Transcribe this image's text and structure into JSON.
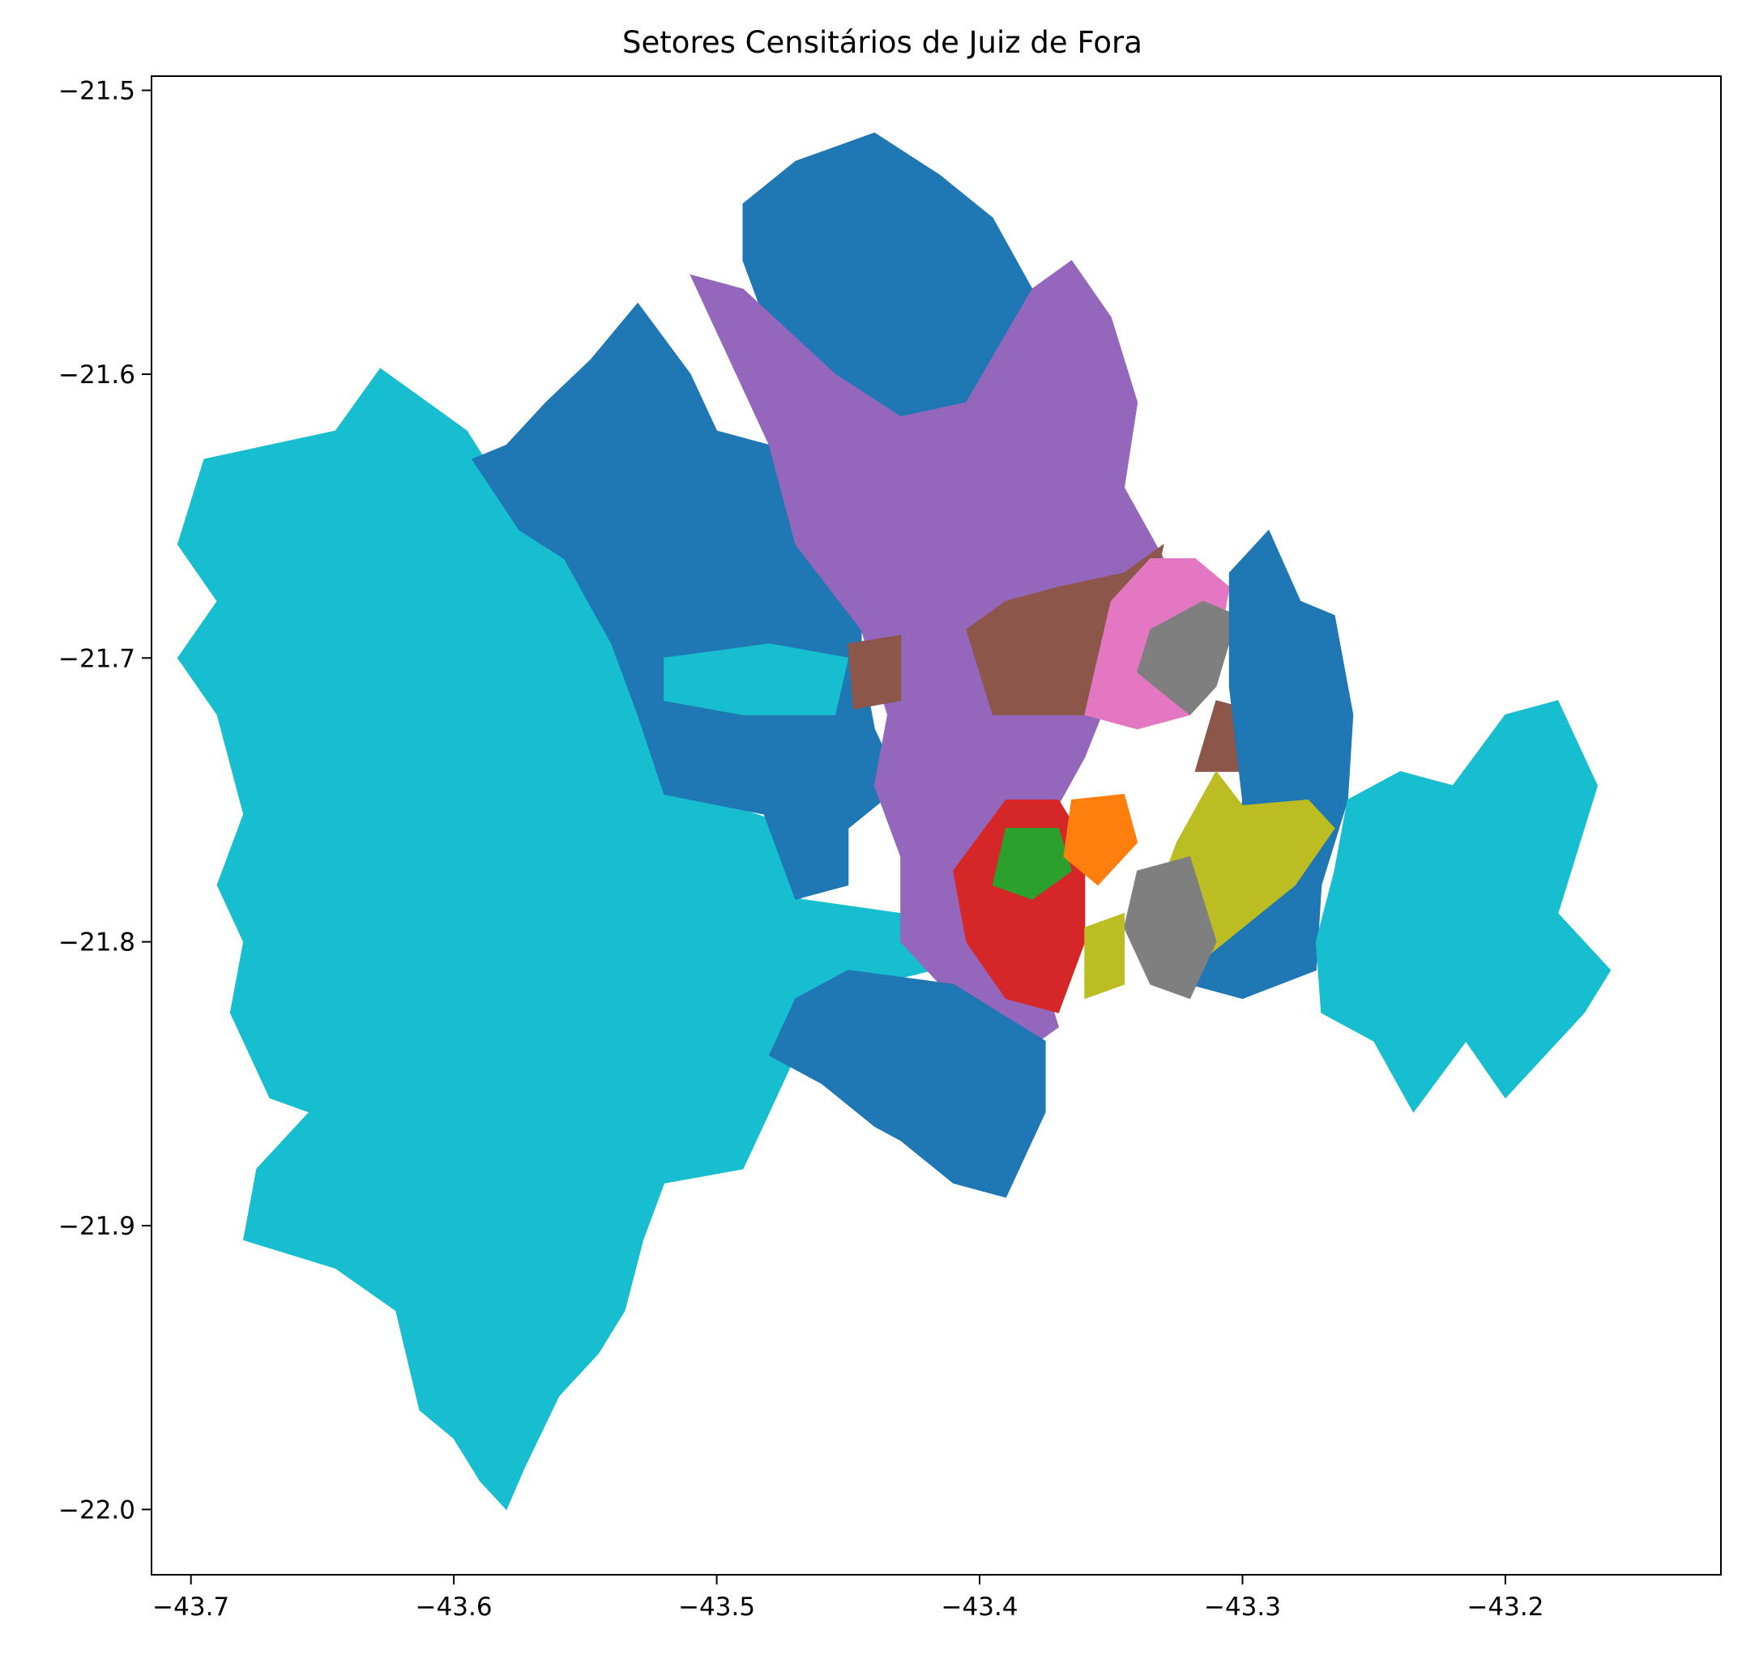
{
  "chart_data": {
    "type": "map",
    "title": "Setores Censitários de Juiz de Fora",
    "xlabel": "",
    "ylabel": "",
    "xlim": [
      -43.715,
      -43.118
    ],
    "ylim": [
      -22.023,
      -21.495
    ],
    "x_ticks": [
      -43.7,
      -43.6,
      -43.5,
      -43.4,
      -43.3,
      -43.2
    ],
    "x_tick_labels": [
      "−43.7",
      "−43.6",
      "−43.5",
      "−43.4",
      "−43.3",
      "−43.2"
    ],
    "y_ticks": [
      -21.5,
      -21.6,
      -21.7,
      -21.8,
      -21.9,
      -22.0
    ],
    "y_tick_labels": [
      "−21.5",
      "−21.6",
      "−21.7",
      "−21.8",
      "−21.9",
      "−22.0"
    ],
    "grid": false,
    "legend": "none",
    "colormap": "tab10",
    "region_colors": {
      "blue": "#1f77b4",
      "orange": "#ff7f0e",
      "green": "#2ca02c",
      "red": "#d62728",
      "purple": "#9467bd",
      "brown": "#8c564b",
      "pink": "#e377c2",
      "gray": "#7f7f7f",
      "olive": "#bcbd22",
      "cyan": "#17becf"
    },
    "regions": [
      {
        "color": "cyan",
        "outline": [
          [
            -43.645,
            -21.62
          ],
          [
            -43.628,
            -21.598
          ],
          [
            -43.61,
            -21.61
          ],
          [
            -43.595,
            -21.62
          ],
          [
            -43.58,
            -21.642
          ],
          [
            -43.56,
            -21.66
          ],
          [
            -43.53,
            -21.685
          ],
          [
            -43.52,
            -21.705
          ],
          [
            -43.508,
            -21.725
          ],
          [
            -43.51,
            -21.748
          ],
          [
            -43.485,
            -21.755
          ],
          [
            -43.47,
            -21.76
          ],
          [
            -43.468,
            -21.785
          ],
          [
            -43.43,
            -21.79
          ],
          [
            -43.418,
            -21.81
          ],
          [
            -43.44,
            -21.815
          ],
          [
            -43.47,
            -21.84
          ],
          [
            -43.48,
            -21.86
          ],
          [
            -43.49,
            -21.88
          ],
          [
            -43.52,
            -21.885
          ],
          [
            -43.528,
            -21.905
          ],
          [
            -43.535,
            -21.93
          ],
          [
            -43.545,
            -21.945
          ],
          [
            -43.56,
            -21.96
          ],
          [
            -43.573,
            -21.985
          ],
          [
            -43.58,
            -22.0
          ],
          [
            -43.59,
            -21.99
          ],
          [
            -43.6,
            -21.975
          ],
          [
            -43.613,
            -21.965
          ],
          [
            -43.622,
            -21.93
          ],
          [
            -43.645,
            -21.915
          ],
          [
            -43.68,
            -21.905
          ],
          [
            -43.675,
            -21.88
          ],
          [
            -43.655,
            -21.86
          ],
          [
            -43.67,
            -21.855
          ],
          [
            -43.685,
            -21.825
          ],
          [
            -43.68,
            -21.8
          ],
          [
            -43.69,
            -21.78
          ],
          [
            -43.68,
            -21.755
          ],
          [
            -43.69,
            -21.72
          ],
          [
            -43.705,
            -21.7
          ],
          [
            -43.69,
            -21.68
          ],
          [
            -43.705,
            -21.66
          ],
          [
            -43.695,
            -21.63
          ]
        ]
      },
      {
        "color": "blue",
        "outline": [
          [
            -43.593,
            -21.63
          ],
          [
            -43.58,
            -21.625
          ],
          [
            -43.565,
            -21.61
          ],
          [
            -43.548,
            -21.595
          ],
          [
            -43.53,
            -21.575
          ],
          [
            -43.51,
            -21.6
          ],
          [
            -43.5,
            -21.62
          ],
          [
            -43.46,
            -21.63
          ],
          [
            -43.445,
            -21.66
          ],
          [
            -43.445,
            -21.7
          ],
          [
            -43.44,
            -21.725
          ],
          [
            -43.43,
            -21.745
          ],
          [
            -43.45,
            -21.76
          ],
          [
            -43.45,
            -21.78
          ],
          [
            -43.47,
            -21.785
          ],
          [
            -43.482,
            -21.755
          ],
          [
            -43.52,
            -21.748
          ],
          [
            -43.53,
            -21.72
          ],
          [
            -43.54,
            -21.695
          ],
          [
            -43.558,
            -21.665
          ],
          [
            -43.575,
            -21.655
          ]
        ]
      },
      {
        "color": "blue",
        "outline": [
          [
            -43.49,
            -21.54
          ],
          [
            -43.47,
            -21.525
          ],
          [
            -43.44,
            -21.515
          ],
          [
            -43.415,
            -21.53
          ],
          [
            -43.395,
            -21.545
          ],
          [
            -43.38,
            -21.57
          ],
          [
            -43.395,
            -21.6
          ],
          [
            -43.4,
            -21.64
          ],
          [
            -43.43,
            -21.64
          ],
          [
            -43.455,
            -21.61
          ],
          [
            -43.48,
            -21.585
          ],
          [
            -43.49,
            -21.56
          ]
        ]
      },
      {
        "color": "purple",
        "outline": [
          [
            -43.51,
            -21.565
          ],
          [
            -43.49,
            -21.57
          ],
          [
            -43.455,
            -21.6
          ],
          [
            -43.43,
            -21.615
          ],
          [
            -43.405,
            -21.61
          ],
          [
            -43.38,
            -21.57
          ],
          [
            -43.365,
            -21.56
          ],
          [
            -43.35,
            -21.58
          ],
          [
            -43.34,
            -21.61
          ],
          [
            -43.345,
            -21.64
          ],
          [
            -43.33,
            -21.665
          ],
          [
            -43.345,
            -21.7
          ],
          [
            -43.36,
            -21.735
          ],
          [
            -43.375,
            -21.76
          ],
          [
            -43.38,
            -21.8
          ],
          [
            -43.37,
            -21.83
          ],
          [
            -43.385,
            -21.84
          ],
          [
            -43.41,
            -21.82
          ],
          [
            -43.43,
            -21.8
          ],
          [
            -43.43,
            -21.77
          ],
          [
            -43.44,
            -21.745
          ],
          [
            -43.435,
            -21.72
          ],
          [
            -43.445,
            -21.69
          ],
          [
            -43.47,
            -21.66
          ],
          [
            -43.48,
            -21.625
          ]
        ]
      },
      {
        "color": "brown",
        "outline": [
          [
            -43.405,
            -21.69
          ],
          [
            -43.39,
            -21.68
          ],
          [
            -43.37,
            -21.675
          ],
          [
            -43.345,
            -21.67
          ],
          [
            -43.33,
            -21.66
          ],
          [
            -43.34,
            -21.7
          ],
          [
            -43.36,
            -21.72
          ],
          [
            -43.395,
            -21.72
          ]
        ]
      },
      {
        "color": "brown",
        "outline": [
          [
            -43.45,
            -21.695
          ],
          [
            -43.43,
            -21.692
          ],
          [
            -43.43,
            -21.715
          ],
          [
            -43.448,
            -21.718
          ]
        ]
      },
      {
        "color": "brown",
        "outline": [
          [
            -43.31,
            -21.715
          ],
          [
            -43.298,
            -21.718
          ],
          [
            -43.298,
            -21.74
          ],
          [
            -43.318,
            -21.74
          ]
        ]
      },
      {
        "color": "pink",
        "outline": [
          [
            -43.35,
            -21.68
          ],
          [
            -43.335,
            -21.665
          ],
          [
            -43.318,
            -21.665
          ],
          [
            -43.305,
            -21.675
          ],
          [
            -43.31,
            -21.7
          ],
          [
            -43.32,
            -21.72
          ],
          [
            -43.34,
            -21.725
          ],
          [
            -43.36,
            -21.72
          ]
        ]
      },
      {
        "color": "gray",
        "outline": [
          [
            -43.335,
            -21.69
          ],
          [
            -43.315,
            -21.68
          ],
          [
            -43.302,
            -21.685
          ],
          [
            -43.31,
            -21.71
          ],
          [
            -43.32,
            -21.72
          ],
          [
            -43.34,
            -21.705
          ]
        ]
      },
      {
        "color": "blue",
        "outline": [
          [
            -43.305,
            -21.67
          ],
          [
            -43.29,
            -21.655
          ],
          [
            -43.278,
            -21.68
          ],
          [
            -43.265,
            -21.685
          ],
          [
            -43.258,
            -21.72
          ],
          [
            -43.26,
            -21.75
          ],
          [
            -43.27,
            -21.78
          ],
          [
            -43.272,
            -21.81
          ],
          [
            -43.3,
            -21.82
          ],
          [
            -43.32,
            -21.815
          ],
          [
            -43.305,
            -21.79
          ],
          [
            -43.3,
            -21.75
          ],
          [
            -43.305,
            -21.71
          ]
        ]
      },
      {
        "color": "olive",
        "outline": [
          [
            -43.31,
            -21.74
          ],
          [
            -43.3,
            -21.752
          ],
          [
            -43.275,
            -21.75
          ],
          [
            -43.265,
            -21.76
          ],
          [
            -43.28,
            -21.78
          ],
          [
            -43.3,
            -21.795
          ],
          [
            -43.32,
            -21.81
          ],
          [
            -43.335,
            -21.79
          ],
          [
            -43.325,
            -21.765
          ]
        ]
      },
      {
        "color": "gray",
        "outline": [
          [
            -43.34,
            -21.775
          ],
          [
            -43.32,
            -21.77
          ],
          [
            -43.31,
            -21.8
          ],
          [
            -43.32,
            -21.82
          ],
          [
            -43.335,
            -21.815
          ],
          [
            -43.345,
            -21.795
          ]
        ]
      },
      {
        "color": "red",
        "outline": [
          [
            -43.39,
            -21.75
          ],
          [
            -43.37,
            -21.75
          ],
          [
            -43.36,
            -21.765
          ],
          [
            -43.36,
            -21.8
          ],
          [
            -43.37,
            -21.825
          ],
          [
            -43.39,
            -21.82
          ],
          [
            -43.405,
            -21.8
          ],
          [
            -43.41,
            -21.775
          ]
        ]
      },
      {
        "color": "green",
        "outline": [
          [
            -43.39,
            -21.76
          ],
          [
            -43.37,
            -21.76
          ],
          [
            -43.365,
            -21.775
          ],
          [
            -43.38,
            -21.785
          ],
          [
            -43.395,
            -21.78
          ]
        ]
      },
      {
        "color": "orange",
        "outline": [
          [
            -43.365,
            -21.75
          ],
          [
            -43.345,
            -21.748
          ],
          [
            -43.34,
            -21.765
          ],
          [
            -43.355,
            -21.78
          ],
          [
            -43.368,
            -21.77
          ]
        ]
      },
      {
        "color": "olive",
        "outline": [
          [
            -43.36,
            -21.795
          ],
          [
            -43.345,
            -21.79
          ],
          [
            -43.345,
            -21.815
          ],
          [
            -43.36,
            -21.82
          ]
        ]
      },
      {
        "color": "cyan",
        "outline": [
          [
            -43.52,
            -21.7
          ],
          [
            -43.48,
            -21.695
          ],
          [
            -43.45,
            -21.7
          ],
          [
            -43.455,
            -21.72
          ],
          [
            -43.49,
            -21.72
          ],
          [
            -43.52,
            -21.715
          ]
        ]
      },
      {
        "color": "cyan",
        "outline": [
          [
            -43.26,
            -21.75
          ],
          [
            -43.24,
            -21.74
          ],
          [
            -43.22,
            -21.745
          ],
          [
            -43.2,
            -21.72
          ],
          [
            -43.18,
            -21.715
          ],
          [
            -43.165,
            -21.745
          ],
          [
            -43.18,
            -21.79
          ],
          [
            -43.16,
            -21.81
          ],
          [
            -43.17,
            -21.825
          ],
          [
            -43.2,
            -21.855
          ],
          [
            -43.215,
            -21.835
          ],
          [
            -43.235,
            -21.86
          ],
          [
            -43.25,
            -21.835
          ],
          [
            -43.27,
            -21.825
          ],
          [
            -43.272,
            -21.8
          ],
          [
            -43.265,
            -21.775
          ]
        ]
      },
      {
        "color": "blue",
        "outline": [
          [
            -43.47,
            -21.82
          ],
          [
            -43.45,
            -21.81
          ],
          [
            -43.41,
            -21.815
          ],
          [
            -43.375,
            -21.835
          ],
          [
            -43.375,
            -21.86
          ],
          [
            -43.39,
            -21.89
          ],
          [
            -43.41,
            -21.885
          ],
          [
            -43.43,
            -21.87
          ],
          [
            -43.44,
            -21.865
          ],
          [
            -43.46,
            -21.85
          ],
          [
            -43.48,
            -21.84
          ]
        ]
      }
    ]
  }
}
